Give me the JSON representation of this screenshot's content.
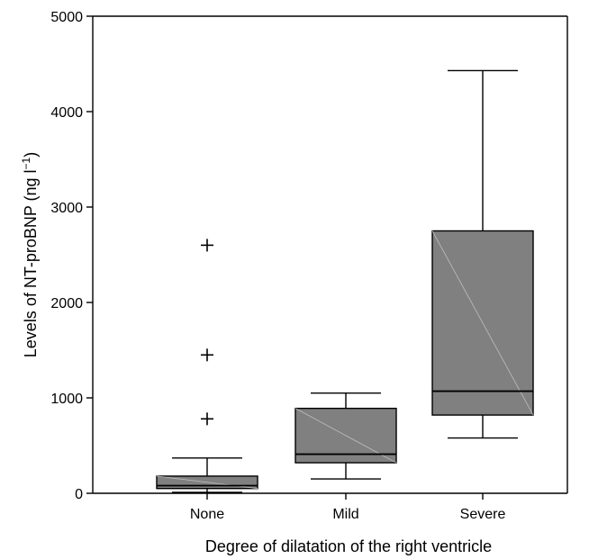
{
  "chart_data": {
    "type": "box",
    "xlabel": "Degree of dilatation of the right ventricle",
    "ylabel": "Levels of NT-proBNP (ng l",
    "ylabel_sup": "−1",
    "ylabel_close": ")",
    "ylim": [
      0,
      5000
    ],
    "yticks": [
      0,
      1000,
      2000,
      3000,
      4000,
      5000
    ],
    "ytick_labels": [
      "0",
      "1000",
      "2000",
      "3000",
      "4000",
      "5000"
    ],
    "box_color": "#808080",
    "categories": [
      "None",
      "Mild",
      "Severe"
    ],
    "boxes": [
      {
        "name": "None",
        "whisker_low": 10,
        "q1": 50,
        "median": 80,
        "q3": 180,
        "whisker_high": 370,
        "outliers": [
          780,
          1450,
          2600
        ]
      },
      {
        "name": "Mild",
        "whisker_low": 150,
        "q1": 320,
        "median": 410,
        "q3": 890,
        "whisker_high": 1050,
        "outliers": []
      },
      {
        "name": "Severe",
        "whisker_low": 580,
        "q1": 820,
        "median": 1070,
        "q3": 2750,
        "whisker_high": 4430,
        "outliers": []
      }
    ]
  }
}
